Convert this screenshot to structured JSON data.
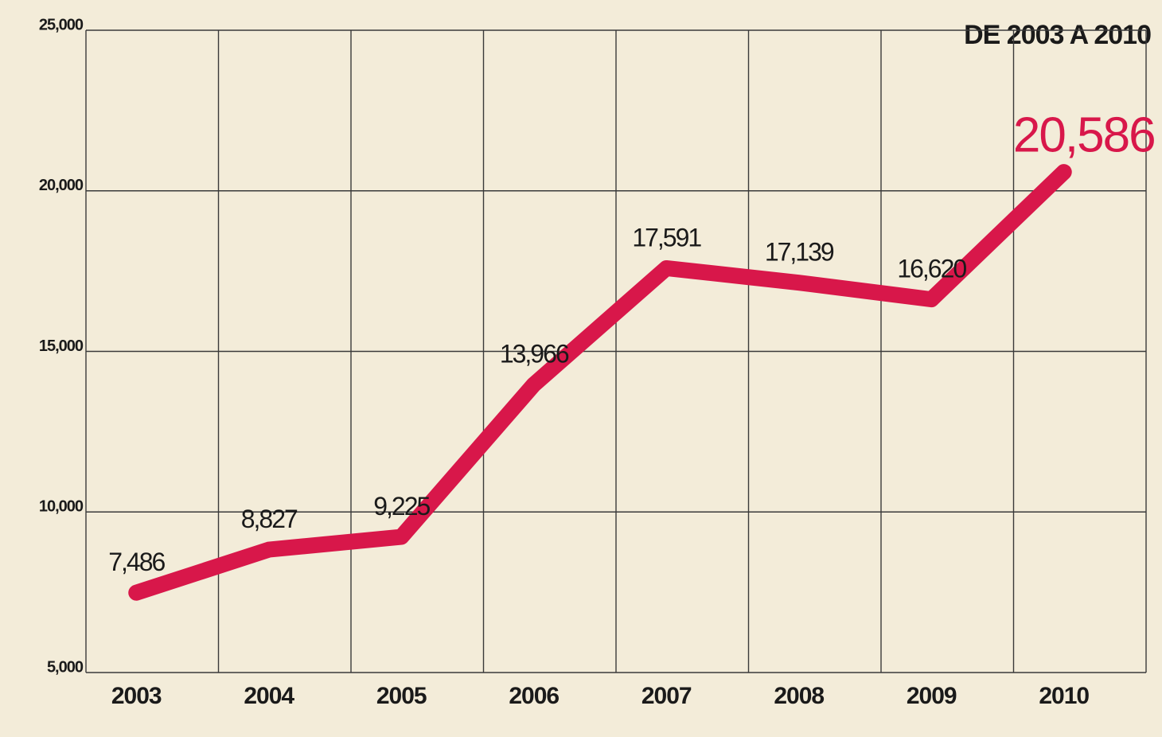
{
  "chart_data": {
    "type": "line",
    "subtitle": "DE 2003 A 2010",
    "categories": [
      "2003",
      "2004",
      "2005",
      "2006",
      "2007",
      "2008",
      "2009",
      "2010"
    ],
    "values": [
      7486,
      8827,
      9225,
      13966,
      17591,
      17139,
      16620,
      20586
    ],
    "value_labels": [
      "7,486",
      "8,827",
      "9,225",
      "13,966",
      "17,591",
      "17,139",
      "16,620",
      "20,586"
    ],
    "color": "#d8174a",
    "ylim": [
      5000,
      25000
    ],
    "yticks": [
      {
        "value": 5000,
        "label": "5,000"
      },
      {
        "value": 10000,
        "label": "10,000"
      },
      {
        "value": 15000,
        "label": "15,000"
      },
      {
        "value": 20000,
        "label": "20,000"
      },
      {
        "value": 25000,
        "label": "25,000"
      }
    ],
    "grid": true
  }
}
